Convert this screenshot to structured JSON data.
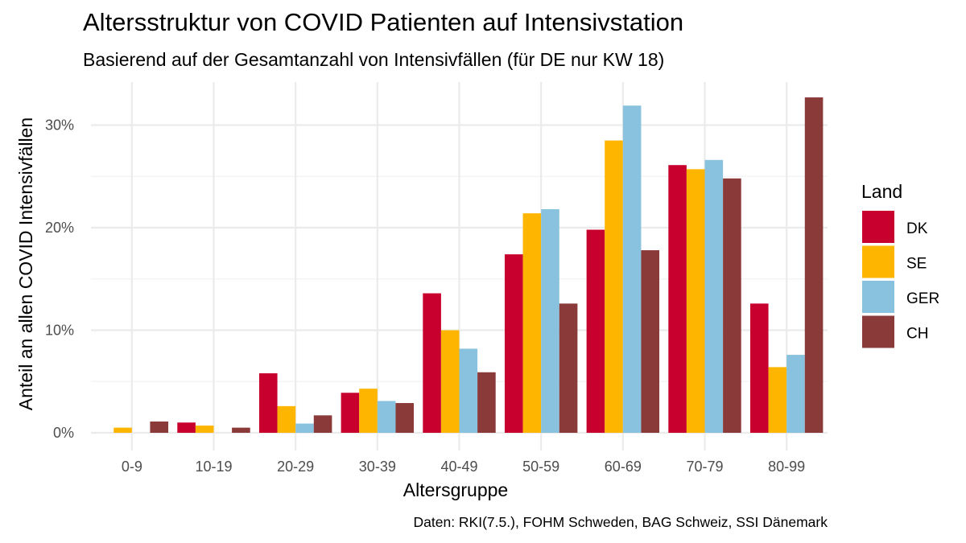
{
  "chart_data": {
    "type": "bar",
    "title": "Altersstruktur von COVID Patienten auf Intensivstation",
    "subtitle": "Basierend auf der Gesamtanzahl von Intensivfällen (für DE nur KW 18)",
    "xlabel": "Altersgruppe",
    "ylabel": "Anteil an allen COVID Intensivfällen",
    "caption": "Daten: RKI(7.5.), FOHM Schweden, BAG Schweiz, SSI Dänemark",
    "categories": [
      "0-9",
      "10-19",
      "20-29",
      "30-39",
      "40-49",
      "50-59",
      "60-69",
      "70-79",
      "80-99"
    ],
    "yticks": [
      0,
      10,
      20,
      30
    ],
    "ytick_labels": [
      "0%",
      "10%",
      "20%",
      "30%"
    ],
    "ylim": [
      0,
      33
    ],
    "legend_title": "Land",
    "legend_position": "right",
    "grid": true,
    "series": [
      {
        "name": "DK",
        "color": "#C8002D",
        "values": [
          0.0,
          1.0,
          5.8,
          3.9,
          13.6,
          17.4,
          19.8,
          26.1,
          12.6
        ]
      },
      {
        "name": "SE",
        "color": "#FDB500",
        "values": [
          0.5,
          0.7,
          2.6,
          4.3,
          10.0,
          21.4,
          28.5,
          25.7,
          6.4
        ]
      },
      {
        "name": "GER",
        "color": "#89C2DE",
        "values": [
          0.0,
          0.0,
          0.9,
          3.1,
          8.2,
          21.8,
          31.9,
          26.6,
          7.6
        ]
      },
      {
        "name": "CH",
        "color": "#8B3A3A",
        "values": [
          1.1,
          0.5,
          1.7,
          2.9,
          5.9,
          12.6,
          17.8,
          24.8,
          32.7
        ]
      }
    ]
  }
}
